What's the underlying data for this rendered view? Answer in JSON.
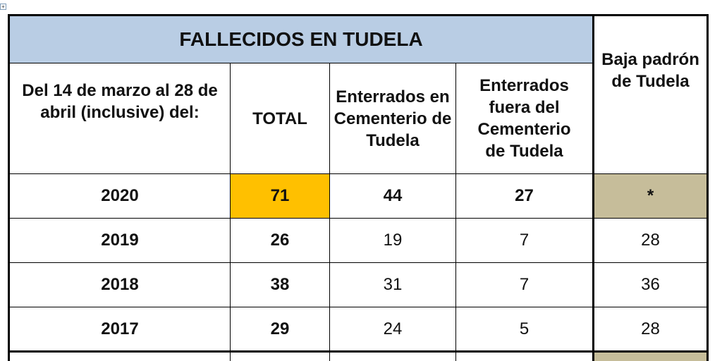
{
  "table": {
    "title": "FALLECIDOS EN TUDELA",
    "headers": {
      "period": "Del 14 de marzo al 28 de abril (inclusive) del:",
      "total": "TOTAL",
      "buried_in": "Enterrados en Cementerio de Tudela",
      "buried_out": "Enterrados fuera del Cementerio de Tudela",
      "baja": "Baja padrón de Tudela"
    },
    "rows": [
      {
        "year": "2020",
        "total": "71",
        "buried_in": "44",
        "buried_out": "27",
        "baja": "*"
      },
      {
        "year": "2019",
        "total": "26",
        "buried_in": "19",
        "buried_out": "7",
        "baja": "28"
      },
      {
        "year": "2018",
        "total": "38",
        "buried_in": "31",
        "buried_out": "7",
        "baja": "36"
      },
      {
        "year": "2017",
        "total": "29",
        "buried_in": "24",
        "buried_out": "5",
        "baja": "28"
      }
    ]
  },
  "colors": {
    "title_bg": "#b9cde4",
    "highlight_total": "#ffc000",
    "highlight_baja": "#c6bd9a"
  },
  "icons": {
    "move_handle": "move-arrows-icon"
  }
}
